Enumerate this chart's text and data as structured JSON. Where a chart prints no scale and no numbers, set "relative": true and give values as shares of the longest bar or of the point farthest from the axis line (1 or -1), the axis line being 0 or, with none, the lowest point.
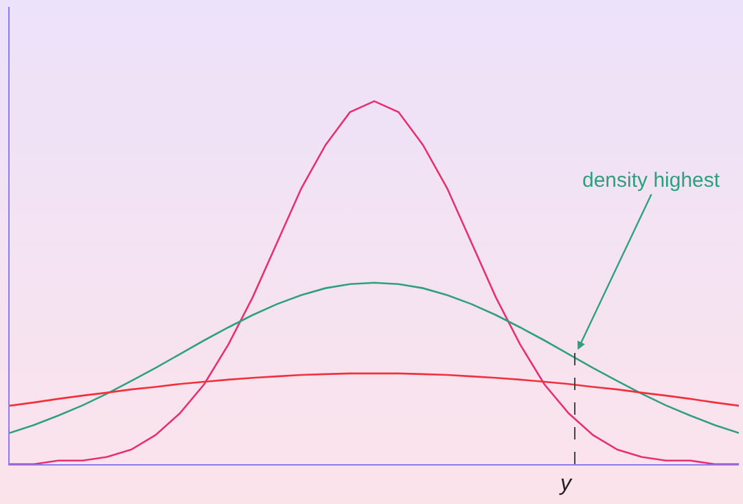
{
  "chart_data": {
    "type": "line",
    "relative": true,
    "categories": [
      null,
      null,
      null,
      null,
      null,
      null,
      null,
      null,
      null,
      null,
      null,
      null,
      null,
      null,
      null,
      null,
      null,
      null,
      null,
      null,
      null,
      null,
      null,
      null,
      null,
      null,
      null,
      null,
      null,
      null,
      null
    ],
    "series": [
      {
        "color": "#e8306e",
        "values": [
          0,
          0,
          0.01,
          0.01,
          0.02,
          0.04,
          0.08,
          0.14,
          0.22,
          0.33,
          0.46,
          0.61,
          0.76,
          0.88,
          0.97,
          1,
          0.97,
          0.88,
          0.76,
          0.61,
          0.46,
          0.33,
          0.22,
          0.14,
          0.08,
          0.04,
          0.02,
          0.01,
          0.01,
          0,
          0
        ]
      },
      {
        "color": "#2fa07e",
        "values": [
          0.086,
          0.108,
          0.134,
          0.162,
          0.194,
          0.229,
          0.265,
          0.303,
          0.341,
          0.377,
          0.411,
          0.441,
          0.466,
          0.485,
          0.496,
          0.5,
          0.496,
          0.485,
          0.466,
          0.441,
          0.411,
          0.377,
          0.341,
          0.303,
          0.265,
          0.229,
          0.194,
          0.162,
          0.134,
          0.108,
          0.086
        ]
      },
      {
        "color": "#f2303c",
        "values": [
          0.161,
          0.17,
          0.18,
          0.189,
          0.197,
          0.206,
          0.213,
          0.221,
          0.227,
          0.233,
          0.238,
          0.242,
          0.246,
          0.248,
          0.25,
          0.25,
          0.25,
          0.248,
          0.246,
          0.242,
          0.238,
          0.233,
          0.227,
          0.221,
          0.213,
          0.206,
          0.197,
          0.189,
          0.18,
          0.17,
          0.161
        ]
      }
    ],
    "annotations": [
      "density highest",
      "y"
    ],
    "line_style": "solid"
  }
}
